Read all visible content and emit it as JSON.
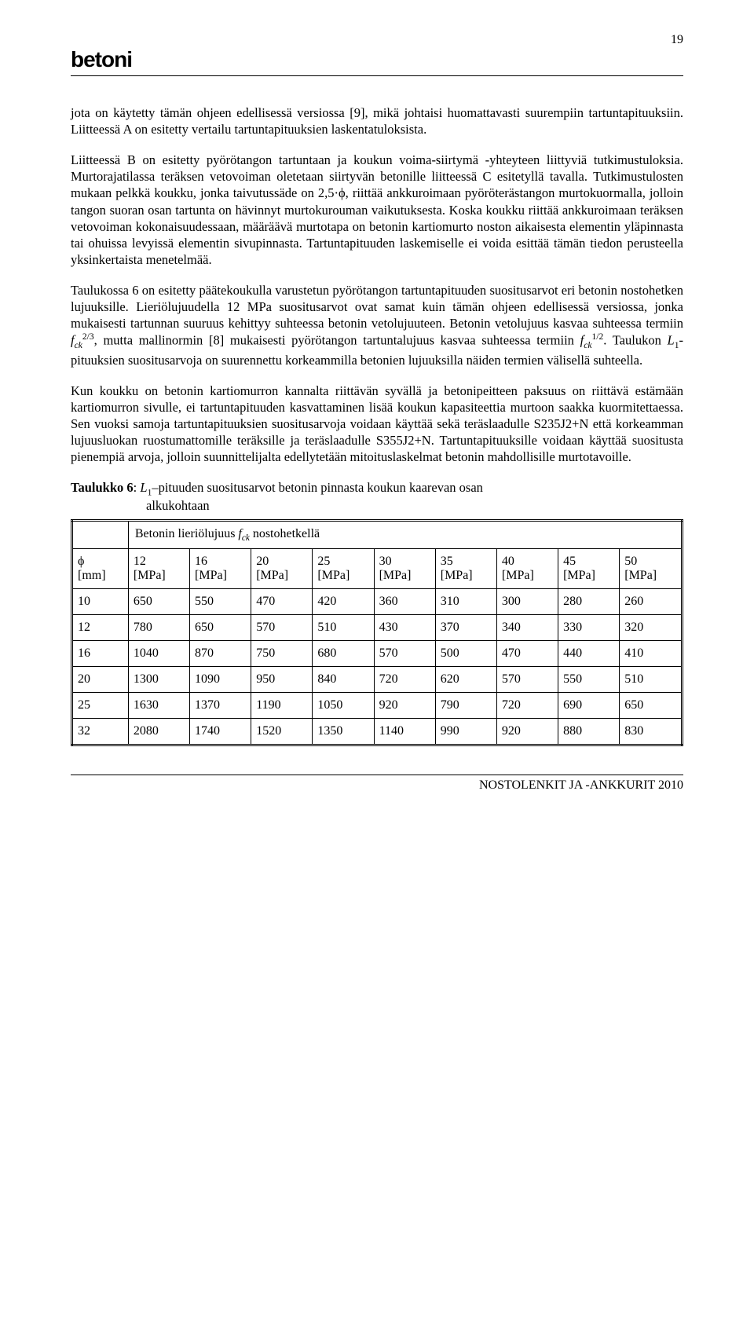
{
  "header": {
    "logo": "betoni",
    "pagenum": "19"
  },
  "paragraphs": {
    "p1": "jota on käytetty tämän ohjeen edellisessä versiossa [9], mikä johtaisi huomattavasti suurempiin tartuntapituuksiin. Liitteessä A on esitetty vertailu tartuntapituuksien laskentatuloksista.",
    "p2": "Liitteessä B on esitetty pyörötangon tartuntaan ja koukun voima-siirtymä -yhteyteen liittyviä tutkimustuloksia. Murtorajatilassa teräksen vetovoiman oletetaan siirtyvän betonille liitteessä C esitetyllä tavalla. Tutkimustulosten mukaan pelkkä koukku, jonka taivutussäde on 2,5·ϕ, riittää ankkuroimaan pyöröterästangon murtokuormalla, jolloin tangon suoran osan tartunta on hävinnyt murtokurouman vaikutuksesta. Koska koukku riittää ankkuroimaan teräksen vetovoiman kokonaisuudessaan, määräävä murtotapa on betonin kartiomurto noston aikaisesta elementin yläpinnasta tai ohuissa levyissä elementin sivupinnasta. Tartuntapituuden laskemiselle ei voida esittää tämän tiedon perusteella yksinkertaista menetelmää.",
    "p3_a": "Taulukossa 6 on esitetty päätekoukulla varustetun pyörötangon tartuntapituuden suositusarvot eri betonin nostohetken lujuuksille. Lieriölujuudella 12 MPa suositusarvot ovat samat kuin tämän ohjeen edellisessä versiossa, jonka mukaisesti tartunnan suuruus kehittyy suhteessa betonin vetolujuuteen. Betonin vetolujuus kasvaa suhteessa termiin ",
    "p3_b": ", mutta mallinormin [8] mukaisesti pyörötangon tartuntalujuus kasvaa suhteessa termiin ",
    "p3_c": ". Taulukon ",
    "p3_d": "-pituuksien suositusarvoja on suurennettu korkeammilla betonien lujuuksilla näiden termien välisellä suhteella.",
    "p4": "Kun koukku on betonin kartiomurron kannalta riittävän syvällä ja betonipeitteen paksuus on riittävä estämään kartiomurron sivulle, ei tartuntapituuden kasvattaminen lisää koukun kapasiteettia murtoon saakka kuormitettaessa. Sen vuoksi samoja tartuntapituuksien suositusarvoja voidaan käyttää sekä teräslaadulle S235J2+N että korkeamman lujuusluokan ruostumattomille teräksille ja teräslaadulle S355J2+N. Tartuntapituuksille voidaan käyttää suositusta pienempiä arvoja, jolloin suunnittelijalta edellytetään mitoituslaskelmat betonin mahdollisille murtotavoille."
  },
  "caption": {
    "bold": "Taulukko 6",
    "rest_a": ": ",
    "rest_b": "–pituuden suositusarvot betonin pinnasta koukun kaarevan osan",
    "line2": "alkukohtaan"
  },
  "math": {
    "fck": "f",
    "fck_sub": "ck",
    "exp23": "2/3",
    "exp12": "1/2",
    "L": "L",
    "L_sub": "1"
  },
  "table": {
    "span_a": "Betonin lieriölujuus ",
    "span_b": " nostohetkellä",
    "rowhead": {
      "l1": "ϕ",
      "l2": "[mm]"
    },
    "cols": [
      {
        "l1": "12",
        "l2": "[MPa]"
      },
      {
        "l1": "16",
        "l2": "[MPa]"
      },
      {
        "l1": "20",
        "l2": "[MPa]"
      },
      {
        "l1": "25",
        "l2": "[MPa]"
      },
      {
        "l1": "30",
        "l2": "[MPa]"
      },
      {
        "l1": "35",
        "l2": "[MPa]"
      },
      {
        "l1": "40",
        "l2": "[MPa]"
      },
      {
        "l1": "45",
        "l2": "[MPa]"
      },
      {
        "l1": "50",
        "l2": "[MPa]"
      }
    ],
    "rows": [
      {
        "h": "10",
        "c": [
          "650",
          "550",
          "470",
          "420",
          "360",
          "310",
          "300",
          "280",
          "260"
        ]
      },
      {
        "h": "12",
        "c": [
          "780",
          "650",
          "570",
          "510",
          "430",
          "370",
          "340",
          "330",
          "320"
        ]
      },
      {
        "h": "16",
        "c": [
          "1040",
          "870",
          "750",
          "680",
          "570",
          "500",
          "470",
          "440",
          "410"
        ]
      },
      {
        "h": "20",
        "c": [
          "1300",
          "1090",
          "950",
          "840",
          "720",
          "620",
          "570",
          "550",
          "510"
        ]
      },
      {
        "h": "25",
        "c": [
          "1630",
          "1370",
          "1190",
          "1050",
          "920",
          "790",
          "720",
          "690",
          "650"
        ]
      },
      {
        "h": "32",
        "c": [
          "2080",
          "1740",
          "1520",
          "1350",
          "1140",
          "990",
          "920",
          "880",
          "830"
        ]
      }
    ]
  },
  "footer": "NOSTOLENKIT JA -ANKKURIT 2010"
}
